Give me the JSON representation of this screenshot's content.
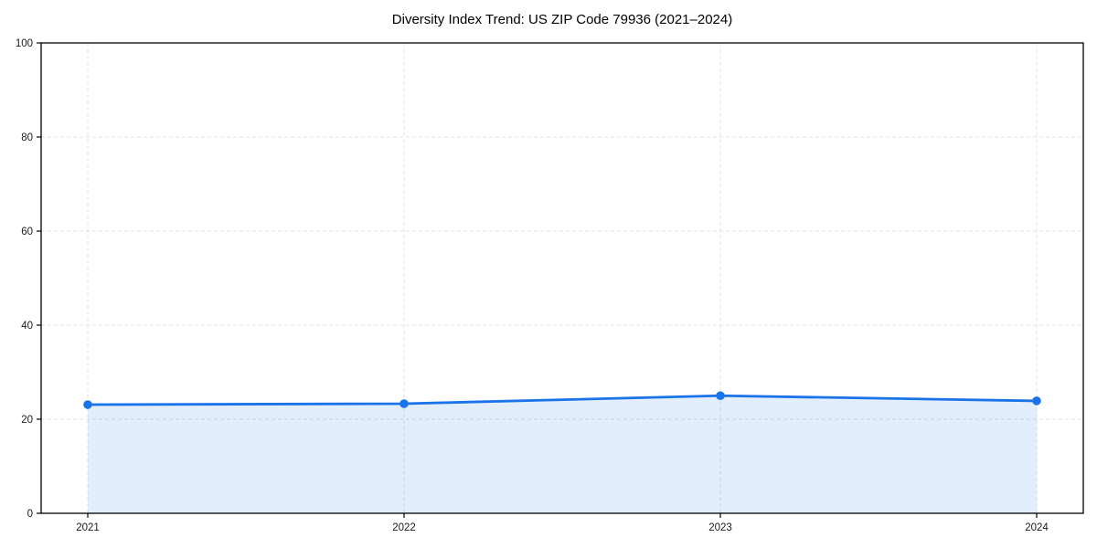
{
  "chart_data": {
    "type": "line",
    "title": "Diversity Index Trend: US ZIP Code 79936 (2021–2024)",
    "categories": [
      "2021",
      "2022",
      "2023",
      "2024"
    ],
    "series": [
      {
        "name": "Diversity Index",
        "values": [
          23.1,
          23.3,
          25.0,
          23.9
        ]
      }
    ],
    "xlabel": "",
    "ylabel": "",
    "ylim": [
      0,
      100
    ],
    "yticks": [
      0,
      20,
      40,
      60,
      80,
      100
    ],
    "grid": "dashed-both",
    "legend": "none",
    "area_fill": true,
    "colors": {
      "line": "#1a73e8",
      "marker": "#1a73e8",
      "area": "#1a73e8",
      "area_opacity": 0.12,
      "grid": "#e2e2e2",
      "spine": "#000000",
      "tick_text": "#1a1a1a",
      "background": "#ffffff"
    }
  }
}
